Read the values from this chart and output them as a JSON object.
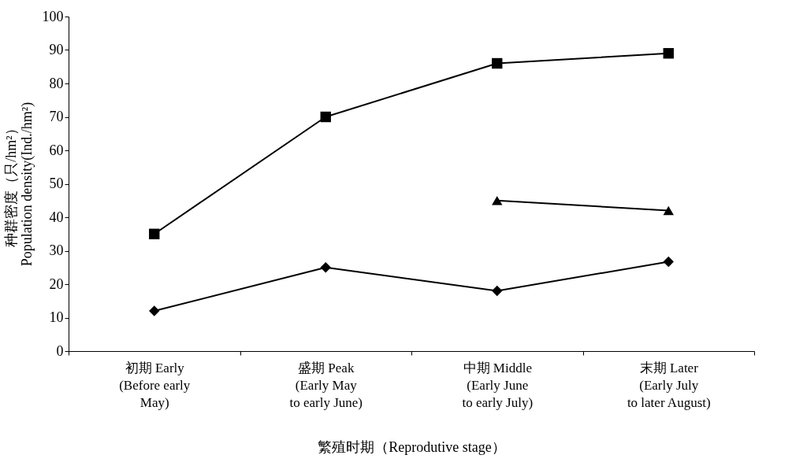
{
  "chart_data": {
    "type": "line",
    "xlabel": "繁殖时期（Reprodutive stage）",
    "ylabel": "种群密度（只/hm²）\nPopulation density(Ind./hm²)",
    "categories": [
      "初期  Early\n\n(Before early\nMay)",
      "盛期  Peak\n\n(Early   May\nto early  June)",
      "中期  Middle\n\n(Early  June\nto early  July)",
      "末期 Later\n\n(Early  July\nto later  August)"
    ],
    "series": [
      {
        "color": "#000000",
        "marker": "square",
        "values": [
          35,
          70,
          86,
          89
        ]
      },
      {
        "color": "#000000",
        "marker": "triangle",
        "values": [
          null,
          null,
          45,
          42
        ]
      },
      {
        "color": "#000000",
        "marker": "diamond",
        "values": [
          12,
          25,
          18,
          26.7
        ]
      }
    ],
    "ylim": [
      0,
      100
    ],
    "yticks": [
      0,
      10,
      20,
      30,
      40,
      50,
      60,
      70,
      80,
      90,
      100
    ],
    "grid": false,
    "line_style": "solid"
  }
}
